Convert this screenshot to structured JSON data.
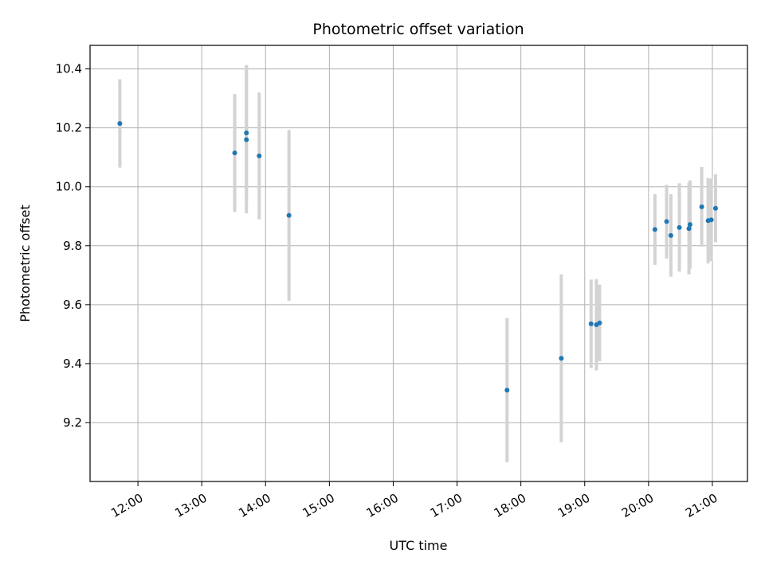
{
  "chart_data": {
    "type": "scatter",
    "title": "Photometric offset variation",
    "xlabel": "UTC time",
    "ylabel": "Photometric offset",
    "x_ticks": [
      "12:00",
      "13:00",
      "14:00",
      "15:00",
      "16:00",
      "17:00",
      "18:00",
      "19:00",
      "20:00",
      "21:00"
    ],
    "y_ticks": [
      "9.2",
      "9.4",
      "9.6",
      "9.8",
      "10.0",
      "10.2",
      "10.4"
    ],
    "xlim": [
      "11:15",
      "21:33"
    ],
    "ylim": [
      9.0,
      10.48
    ],
    "grid": true,
    "point_color": "#1f77b4",
    "errorbar_color": "#d3d3d3",
    "points": [
      {
        "x": "11:43",
        "y": 10.215,
        "yerr": 0.15
      },
      {
        "x": "13:31",
        "y": 10.115,
        "yerr": 0.2
      },
      {
        "x": "13:42",
        "y": 10.183,
        "yerr": 0.23
      },
      {
        "x": "13:42",
        "y": 10.16,
        "yerr": 0.25
      },
      {
        "x": "13:54",
        "y": 10.105,
        "yerr": 0.215
      },
      {
        "x": "14:22",
        "y": 9.903,
        "yerr": 0.29
      },
      {
        "x": "17:47",
        "y": 9.31,
        "yerr": 0.245
      },
      {
        "x": "18:38",
        "y": 9.418,
        "yerr": 0.285
      },
      {
        "x": "19:06",
        "y": 9.535,
        "yerr": 0.15
      },
      {
        "x": "19:11",
        "y": 9.532,
        "yerr": 0.155
      },
      {
        "x": "19:14",
        "y": 9.538,
        "yerr": 0.13
      },
      {
        "x": "20:06",
        "y": 9.855,
        "yerr": 0.12
      },
      {
        "x": "20:17",
        "y": 9.882,
        "yerr": 0.125
      },
      {
        "x": "20:21",
        "y": 9.835,
        "yerr": 0.14
      },
      {
        "x": "20:29",
        "y": 9.862,
        "yerr": 0.15
      },
      {
        "x": "20:38",
        "y": 9.858,
        "yerr": 0.155
      },
      {
        "x": "20:39",
        "y": 9.872,
        "yerr": 0.15
      },
      {
        "x": "20:50",
        "y": 9.932,
        "yerr": 0.135
      },
      {
        "x": "20:56",
        "y": 9.885,
        "yerr": 0.145
      },
      {
        "x": "20:59",
        "y": 9.888,
        "yerr": 0.14
      },
      {
        "x": "21:03",
        "y": 9.927,
        "yerr": 0.115
      }
    ]
  }
}
